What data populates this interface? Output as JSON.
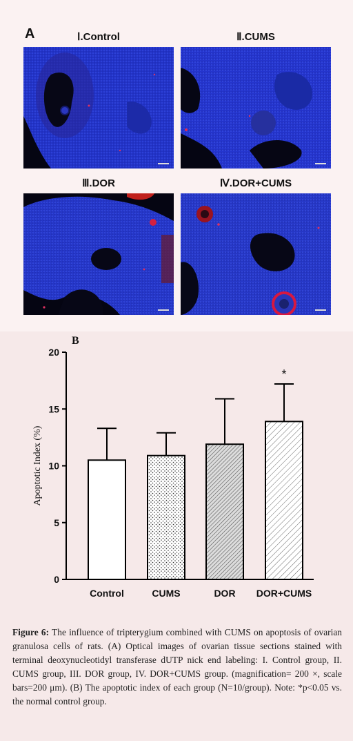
{
  "panel_a": {
    "letter": "A",
    "images": [
      {
        "title": "Ⅰ.Control"
      },
      {
        "title": "Ⅱ.CUMS"
      },
      {
        "title": "Ⅲ.DOR"
      },
      {
        "title": "Ⅳ.DOR+CUMS"
      }
    ]
  },
  "panel_b": {
    "letter": "B"
  },
  "chart_data": {
    "type": "bar",
    "categories": [
      "Control",
      "CUMS",
      "DOR",
      "DOR+CUMS"
    ],
    "values": [
      10.5,
      10.9,
      11.9,
      13.9
    ],
    "errors": [
      2.8,
      2.0,
      4.0,
      3.3
    ],
    "significance": [
      "",
      "",
      "",
      "*"
    ],
    "ylabel": "Apoptotic Index (%)",
    "ylim": [
      0,
      20
    ],
    "yticks": [
      0,
      5,
      10,
      15,
      20
    ],
    "bar_patterns": [
      "none",
      "dots",
      "dense-diagonal",
      "sparse-diagonal"
    ],
    "grid": false
  },
  "caption": {
    "label": "Figure 6:",
    "text": " The influence of tripterygium combined with CUMS on apoptosis of ovarian granulosa cells of rats. (A) Optical images of ovarian tissue sections stained with terminal deoxynucleotidyl transferase dUTP nick end labeling: I. Control group, II. CUMS group, III. DOR group, IV. DOR+CUMS group. (magnification= 200 ×, scale bars=200 μm). (B) The apoptotic index of each group (N=10/group). Note: *p<0.05 vs. the normal control group."
  }
}
